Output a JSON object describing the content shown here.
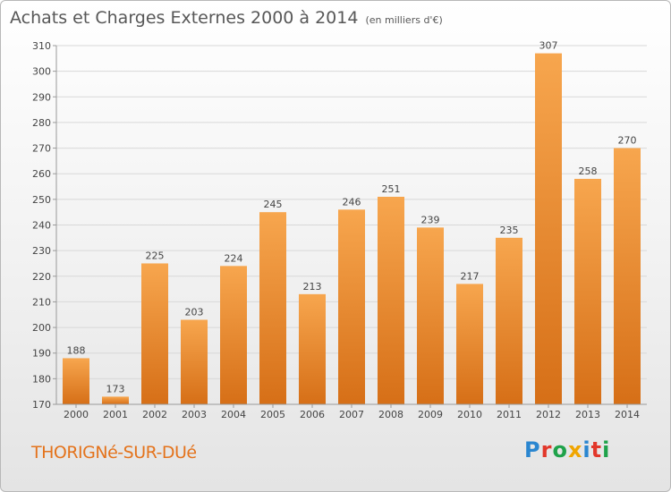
{
  "header": {
    "title": "Achats et Charges Externes 2000 à 2014",
    "unit": "(en milliers d'€)"
  },
  "footer": {
    "commune": "THORIGNé-SUR-DUé",
    "logo": "Proxiti",
    "logo_colors": [
      "#2a86d0",
      "#e2382b",
      "#1fa24a",
      "#f0a500",
      "#2a86d0",
      "#e2382b",
      "#1fa24a"
    ]
  },
  "colors": {
    "bar_light": "#f7a64e",
    "bar_dark": "#d66f17",
    "grid": "#d8d8d8",
    "axis_text": "#444444"
  },
  "chart_data": {
    "type": "bar",
    "title": "Achats et Charges Externes 2000 à 2014",
    "categories": [
      "2000",
      "2001",
      "2002",
      "2003",
      "2004",
      "2005",
      "2006",
      "2007",
      "2008",
      "2009",
      "2010",
      "2011",
      "2012",
      "2013",
      "2014"
    ],
    "values": [
      188,
      173,
      225,
      203,
      224,
      245,
      213,
      246,
      251,
      239,
      217,
      235,
      307,
      258,
      270
    ],
    "ylim": [
      170,
      310
    ],
    "yticks": [
      170,
      180,
      190,
      200,
      210,
      220,
      230,
      240,
      250,
      260,
      270,
      280,
      290,
      300,
      310
    ],
    "grid": true,
    "data_labels": true
  }
}
